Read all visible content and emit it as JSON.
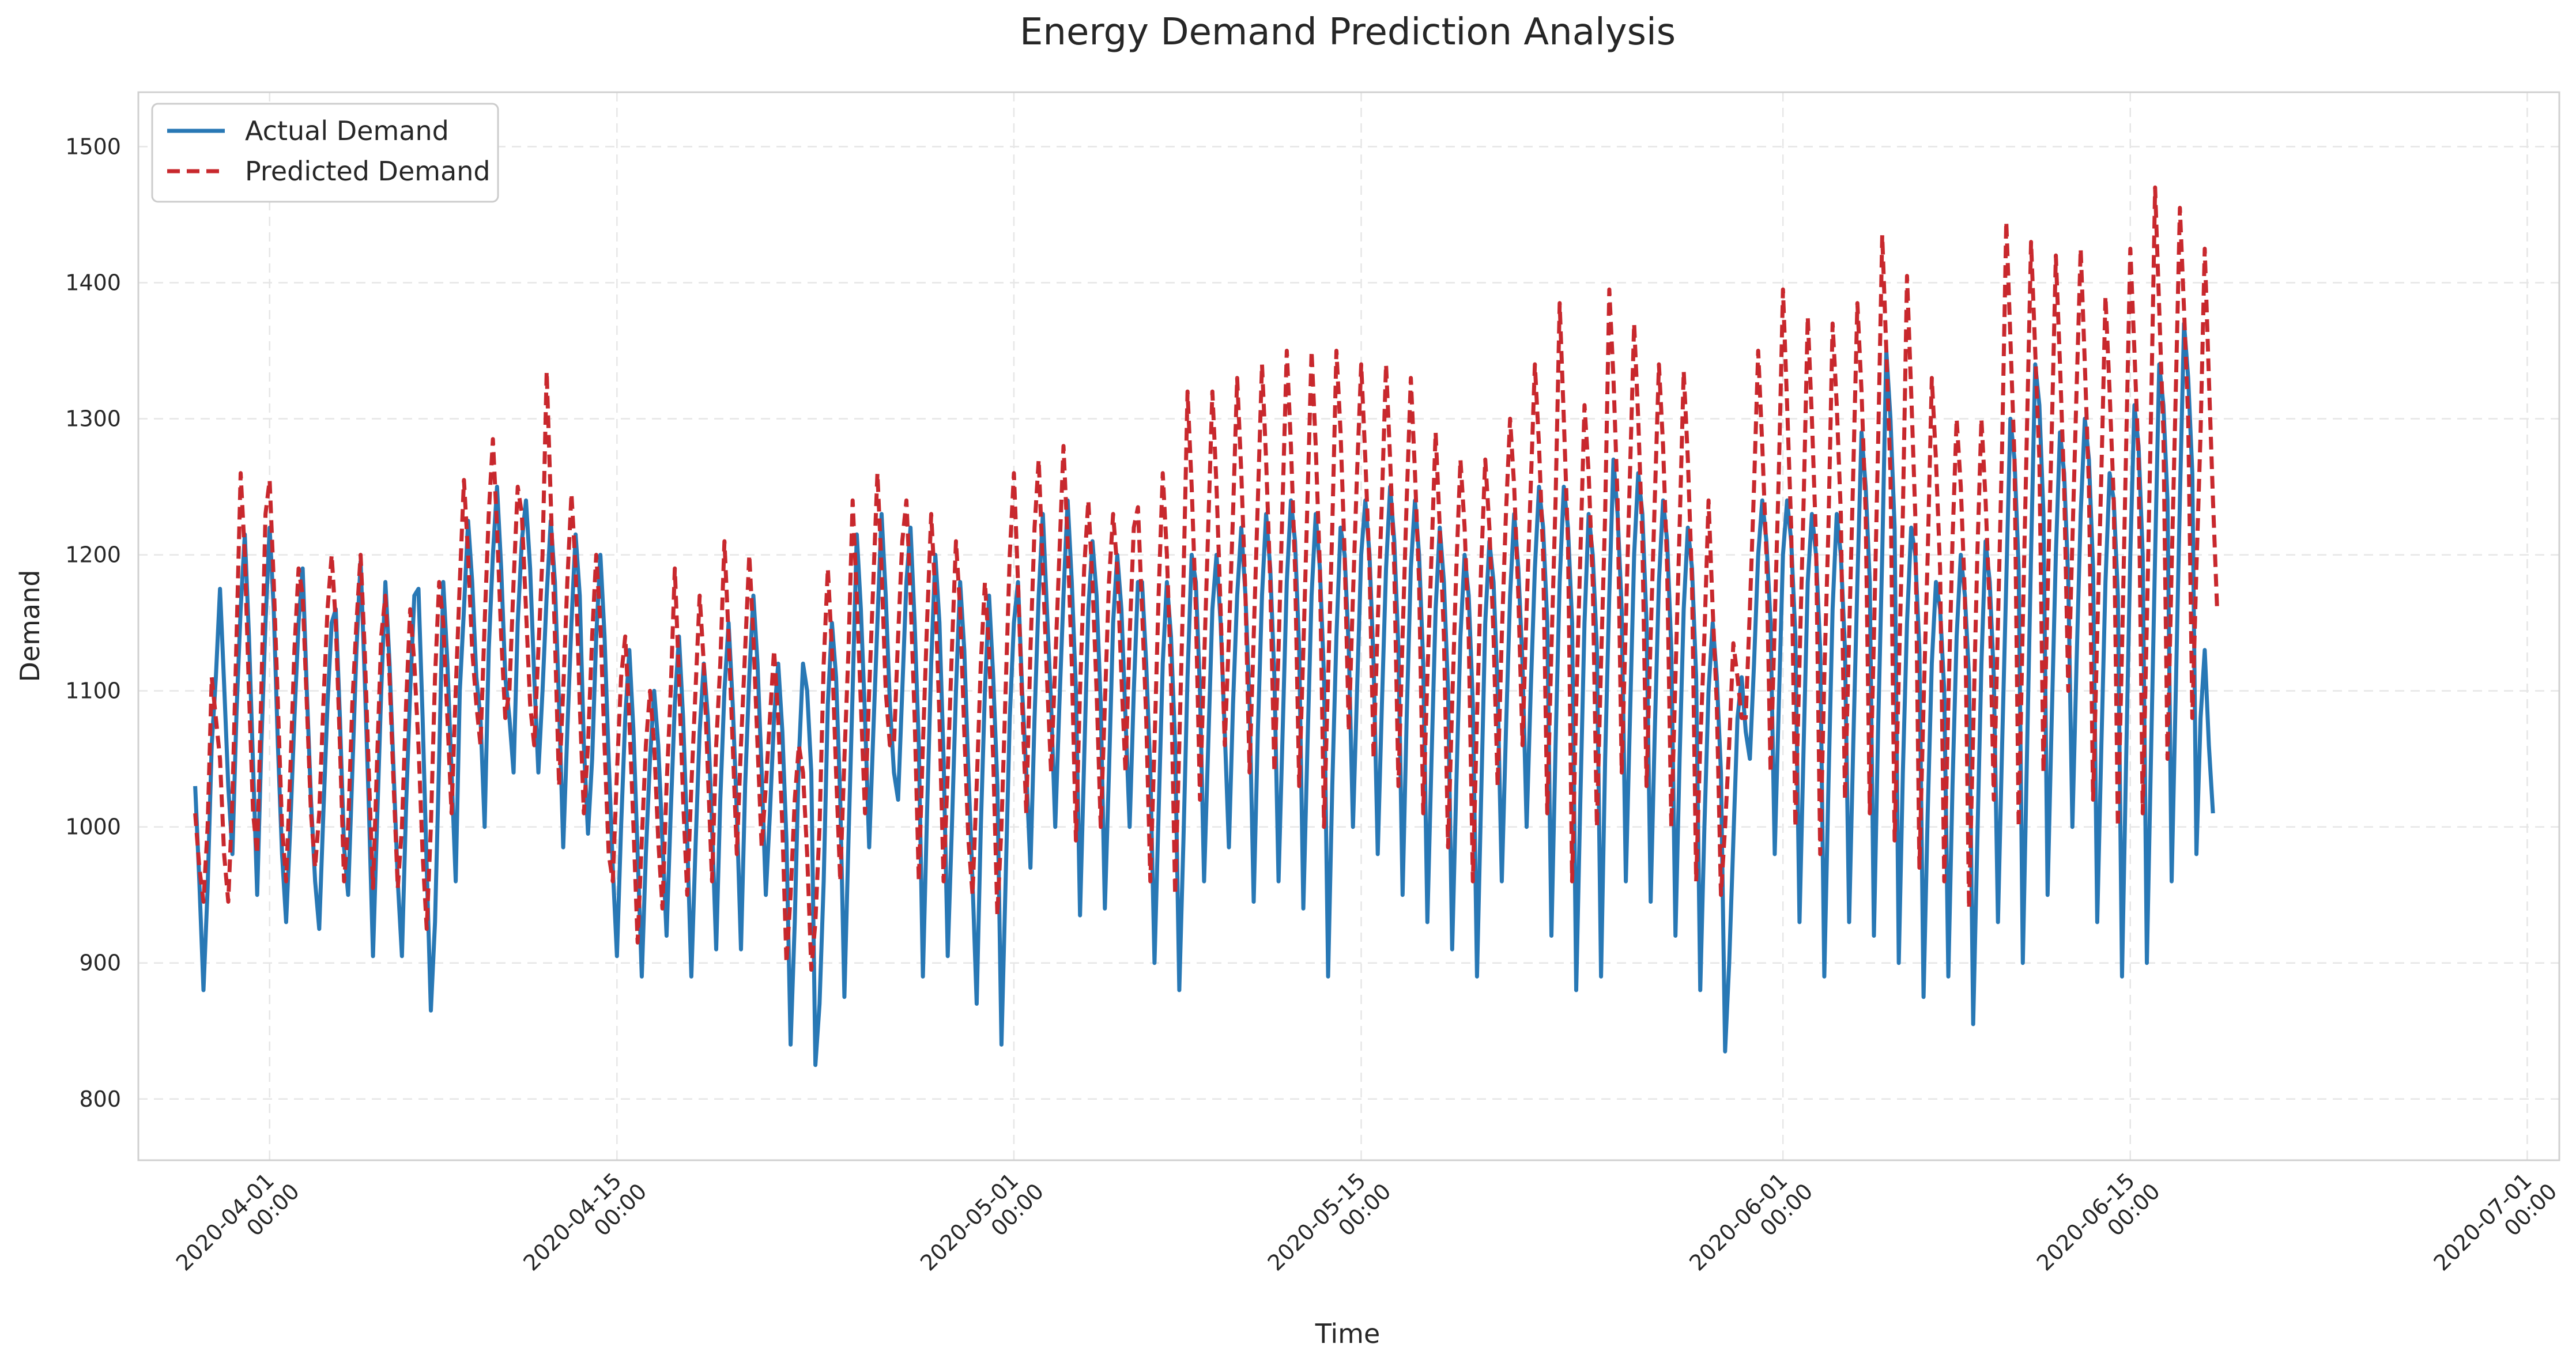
{
  "chart_data": {
    "type": "line",
    "title": "Energy Demand Prediction Analysis",
    "xlabel": "Time",
    "ylabel": "Demand",
    "x_range": [
      "2020-03-26T17:00",
      "2020-07-02T07:00"
    ],
    "ylim": [
      755,
      1540
    ],
    "grid": true,
    "legend_position": "top-left",
    "y_ticks": [
      800,
      900,
      1000,
      1100,
      1200,
      1300,
      1400,
      1500
    ],
    "x_ticks": [
      {
        "date": "2020-04-01",
        "label_date": "2020-04-01",
        "label_time": "00:00"
      },
      {
        "date": "2020-04-15",
        "label_date": "2020-04-15",
        "label_time": "00:00"
      },
      {
        "date": "2020-05-01",
        "label_date": "2020-05-01",
        "label_time": "00:00"
      },
      {
        "date": "2020-05-15",
        "label_date": "2020-05-15",
        "label_time": "00:00"
      },
      {
        "date": "2020-06-01",
        "label_date": "2020-06-01",
        "label_time": "00:00"
      },
      {
        "date": "2020-06-15",
        "label_date": "2020-06-15",
        "label_time": "00:00"
      },
      {
        "date": "2020-07-01",
        "label_date": "2020-07-01",
        "label_time": "00:00"
      }
    ],
    "series": [
      {
        "name": "Actual Demand",
        "color": "#2878b5",
        "style": "solid",
        "start": "2020-03-29T00:00",
        "interval_hours": 4,
        "values": [
          1030,
          960,
          880,
          955,
          1060,
          1110,
          1175,
          1105,
          1030,
          980,
          1085,
          1160,
          1215,
          1140,
          1045,
          950,
          1060,
          1150,
          1220,
          1160,
          1060,
          980,
          930,
          1000,
          1080,
          1150,
          1190,
          1100,
          1020,
          960,
          925,
          1010,
          1090,
          1150,
          1160,
          1080,
          985,
          950,
          1040,
          1130,
          1195,
          1110,
          1015,
          905,
          1005,
          1100,
          1180,
          1120,
          1040,
          960,
          905,
          1015,
          1100,
          1170,
          1175,
          1080,
          970,
          865,
          930,
          1050,
          1180,
          1120,
          1040,
          960,
          1100,
          1160,
          1225,
          1180,
          1110,
          1080,
          1000,
          1130,
          1200,
          1250,
          1190,
          1110,
          1080,
          1040,
          1150,
          1210,
          1240,
          1190,
          1110,
          1040,
          1100,
          1170,
          1225,
          1180,
          1090,
          985,
          1070,
          1150,
          1215,
          1170,
          1060,
          995,
          1050,
          1140,
          1200,
          1140,
          1050,
          970,
          905,
          1000,
          1080,
          1130,
          1070,
          980,
          890,
          980,
          1050,
          1100,
          1060,
          990,
          920,
          1010,
          1090,
          1140,
          1080,
          990,
          890,
          985,
          1070,
          1120,
          1080,
          1000,
          910,
          1020,
          1100,
          1150,
          1090,
          1010,
          910,
          1030,
          1110,
          1170,
          1120,
          1040,
          950,
          1010,
          1080,
          1120,
          1070,
          990,
          840,
          930,
          1050,
          1120,
          1100,
          1040,
          825,
          870,
          960,
          1090,
          1150,
          1110,
          1020,
          875,
          990,
          1100,
          1215,
          1160,
          1080,
          985,
          1070,
          1150,
          1230,
          1170,
          1090,
          1040,
          1020,
          1100,
          1180,
          1220,
          1150,
          1060,
          890,
          1010,
          1120,
          1200,
          1150,
          1050,
          905,
          1000,
          1100,
          1180,
          1130,
          1040,
          960,
          870,
          1000,
          1100,
          1170,
          1110,
          1030,
          840,
          960,
          1080,
          1150,
          1180,
          1100,
          1040,
          970,
          1080,
          1170,
          1230,
          1160,
          1090,
          1000,
          1090,
          1170,
          1240,
          1180,
          1100,
          935,
          1050,
          1160,
          1210,
          1170,
          1090,
          940,
          1040,
          1150,
          1200,
          1160,
          1080,
          1000,
          1100,
          1180,
          1180,
          1120,
          1040,
          900,
          1010,
          1120,
          1180,
          1140,
          1060,
          880,
          990,
          1110,
          1200,
          1180,
          1100,
          960,
          1060,
          1160,
          1200,
          1150,
          1070,
          985,
          1090,
          1170,
          1220,
          1170,
          1090,
          945,
          1070,
          1170,
          1230,
          1190,
          1110,
          960,
          1070,
          1180,
          1240,
          1210,
          1130,
          940,
          1060,
          1170,
          1230,
          1190,
          1110,
          890,
          1030,
          1140,
          1220,
          1200,
          1130,
          1000,
          1100,
          1200,
          1240,
          1200,
          1120,
          980,
          1090,
          1190,
          1250,
          1210,
          1130,
          950,
          1080,
          1190,
          1240,
          1200,
          1120,
          930,
          1050,
          1160,
          1220,
          1180,
          1100,
          910,
          1030,
          1140,
          1200,
          1170,
          1090,
          890,
          1020,
          1150,
          1210,
          1180,
          1100,
          960,
          1070,
          1170,
          1230,
          1190,
          1120,
          1000,
          1100,
          1190,
          1250,
          1220,
          1150,
          920,
          1060,
          1180,
          1250,
          1220,
          1150,
          880,
          1020,
          1150,
          1230,
          1200,
          1130,
          890,
          1050,
          1170,
          1270,
          1230,
          1160,
          960,
          1080,
          1200,
          1260,
          1230,
          1150,
          945,
          1070,
          1180,
          1240,
          1210,
          1130,
          920,
          1050,
          1160,
          1220,
          1190,
          1110,
          880,
          1000,
          1100,
          1150,
          1110,
          1040,
          835,
          900,
          990,
          1080,
          1110,
          1070,
          1050,
          1120,
          1200,
          1240,
          1210,
          1150,
          980,
          1090,
          1200,
          1240,
          1210,
          1140,
          930,
          1060,
          1180,
          1230,
          1200,
          1130,
          890,
          1030,
          1160,
          1230,
          1200,
          1130,
          930,
          1060,
          1180,
          1290,
          1250,
          1180,
          920,
          1070,
          1200,
          1350,
          1300,
          1220,
          900,
          1040,
          1150,
          1220,
          1200,
          1130,
          875,
          1010,
          1120,
          1180,
          1160,
          1100,
          890,
          1030,
          1140,
          1200,
          1170,
          1110,
          855,
          990,
          1120,
          1210,
          1180,
          1110,
          930,
          1060,
          1180,
          1300,
          1270,
          1190,
          900,
          1050,
          1200,
          1340,
          1310,
          1230,
          950,
          1080,
          1200,
          1290,
          1260,
          1180,
          1000,
          1120,
          1230,
          1300,
          1270,
          1190,
          930,
          1060,
          1180,
          1260,
          1240,
          1170,
          890,
          1050,
          1200,
          1310,
          1280,
          1200,
          900,
          1050,
          1200,
          1340,
          1310,
          1240,
          960,
          1100,
          1240,
          1370,
          1330,
          1260,
          980,
          1080,
          1130,
          1060,
          1010
        ]
      },
      {
        "name": "Predicted Demand",
        "color": "#c8282d",
        "style": "dashed",
        "start": "2020-03-29T00:00",
        "interval_hours": 4,
        "values": [
          1010,
          970,
          945,
          1000,
          1110,
          1080,
          1050,
          980,
          945,
          1020,
          1140,
          1260,
          1200,
          1100,
          1010,
          980,
          1100,
          1230,
          1255,
          1180,
          1090,
          1000,
          960,
          1040,
          1130,
          1190,
          1170,
          1090,
          1010,
          970,
          1010,
          1090,
          1160,
          1200,
          1150,
          1060,
          960,
          1000,
          1090,
          1150,
          1200,
          1130,
          1040,
          955,
          1050,
          1140,
          1170,
          1110,
          1030,
          955,
          1000,
          1090,
          1160,
          1120,
          1060,
          980,
          925,
          1000,
          1110,
          1180,
          1150,
          1080,
          1010,
          1100,
          1180,
          1255,
          1200,
          1130,
          1090,
          1060,
          1150,
          1230,
          1285,
          1220,
          1140,
          1080,
          1100,
          1180,
          1250,
          1230,
          1160,
          1090,
          1060,
          1130,
          1200,
          1335,
          1240,
          1140,
          1030,
          1100,
          1180,
          1245,
          1190,
          1090,
          1010,
          1060,
          1140,
          1200,
          1150,
          1060,
          980,
          960,
          1040,
          1110,
          1140,
          1080,
          1000,
          915,
          990,
          1060,
          1100,
          1060,
          990,
          940,
          1030,
          1100,
          1190,
          1110,
          1020,
          950,
          1030,
          1100,
          1170,
          1120,
          1040,
          960,
          1060,
          1120,
          1210,
          1140,
          1060,
          980,
          1060,
          1130,
          1200,
          1140,
          1060,
          985,
          1030,
          1080,
          1130,
          1080,
          1000,
          900,
          950,
          1020,
          1060,
          1040,
          980,
          895,
          930,
          1000,
          1120,
          1190,
          1130,
          1040,
          960,
          1050,
          1130,
          1240,
          1170,
          1090,
          1010,
          1100,
          1180,
          1260,
          1190,
          1100,
          1060,
          1060,
          1140,
          1210,
          1240,
          1170,
          1080,
          960,
          1060,
          1150,
          1230,
          1170,
          1080,
          960,
          1040,
          1130,
          1210,
          1160,
          1070,
          990,
          950,
          1030,
          1120,
          1180,
          1130,
          1050,
          935,
          1000,
          1100,
          1200,
          1260,
          1180,
          1090,
          1010,
          1130,
          1220,
          1270,
          1190,
          1110,
          1040,
          1120,
          1200,
          1280,
          1210,
          1120,
          990,
          1100,
          1190,
          1240,
          1180,
          1100,
          1000,
          1090,
          1180,
          1230,
          1190,
          1110,
          1040,
          1140,
          1220,
          1235,
          1160,
          1080,
          960,
          1060,
          1170,
          1260,
          1200,
          1110,
          950,
          1060,
          1180,
          1320,
          1250,
          1160,
          1020,
          1120,
          1220,
          1320,
          1250,
          1160,
          1060,
          1140,
          1230,
          1330,
          1260,
          1170,
          1040,
          1140,
          1240,
          1340,
          1270,
          1180,
          1040,
          1130,
          1240,
          1350,
          1280,
          1190,
          1030,
          1130,
          1240,
          1350,
          1280,
          1190,
          1000,
          1110,
          1220,
          1350,
          1290,
          1200,
          1070,
          1170,
          1260,
          1340,
          1270,
          1190,
          1050,
          1150,
          1240,
          1340,
          1270,
          1190,
          1030,
          1140,
          1240,
          1330,
          1260,
          1180,
          1010,
          1110,
          1200,
          1290,
          1220,
          1140,
          985,
          1090,
          1190,
          1270,
          1220,
          1140,
          960,
          1080,
          1190,
          1270,
          1220,
          1140,
          1030,
          1140,
          1230,
          1300,
          1250,
          1170,
          1060,
          1160,
          1250,
          1340,
          1280,
          1200,
          1010,
          1130,
          1240,
          1385,
          1300,
          1210,
          960,
          1090,
          1200,
          1310,
          1260,
          1180,
          1000,
          1120,
          1230,
          1395,
          1330,
          1240,
          1040,
          1150,
          1260,
          1370,
          1300,
          1210,
          1030,
          1140,
          1240,
          1340,
          1280,
          1190,
          1000,
          1110,
          1220,
          1335,
          1270,
          1180,
          960,
          1060,
          1140,
          1240,
          1160,
          1090,
          950,
          1000,
          1060,
          1135,
          1110,
          1080,
          1080,
          1160,
          1250,
          1350,
          1280,
          1200,
          1040,
          1150,
          1260,
          1395,
          1310,
          1220,
          1000,
          1120,
          1240,
          1375,
          1300,
          1210,
          980,
          1110,
          1220,
          1370,
          1310,
          1230,
          1020,
          1140,
          1260,
          1385,
          1320,
          1230,
          1010,
          1140,
          1280,
          1435,
          1350,
          1260,
          990,
          1110,
          1230,
          1405,
          1320,
          1230,
          970,
          1090,
          1200,
          1330,
          1270,
          1190,
          960,
          1090,
          1210,
          1300,
          1250,
          1170,
          940,
          1070,
          1200,
          1300,
          1240,
          1160,
          1020,
          1150,
          1280,
          1445,
          1360,
          1270,
          1000,
          1150,
          1290,
          1430,
          1350,
          1270,
          1040,
          1170,
          1290,
          1420,
          1340,
          1250,
          1100,
          1210,
          1320,
          1425,
          1340,
          1250,
          1020,
          1140,
          1260,
          1390,
          1320,
          1240,
          1000,
          1130,
          1280,
          1425,
          1350,
          1270,
          1010,
          1150,
          1300,
          1470,
          1380,
          1290,
          1050,
          1190,
          1320,
          1455,
          1380,
          1300,
          1080,
          1190,
          1290,
          1425,
          1330,
          1240,
          1160
        ]
      }
    ]
  }
}
